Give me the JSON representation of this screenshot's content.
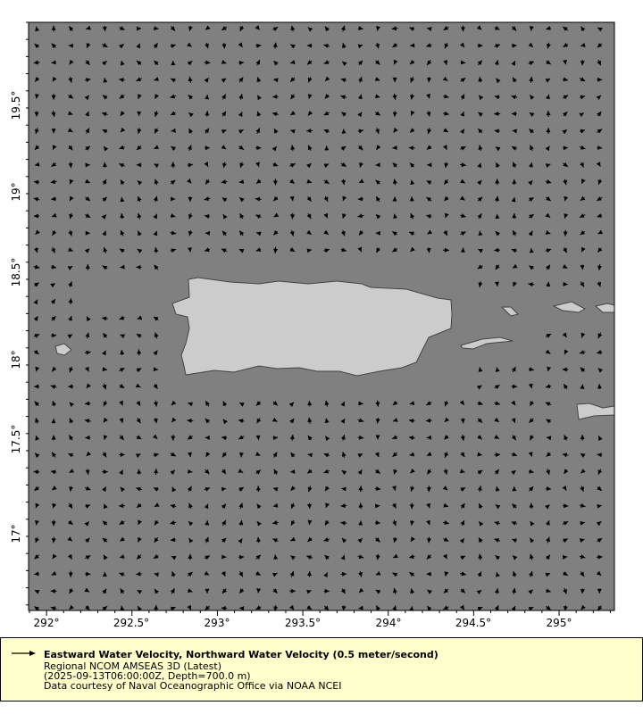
{
  "map": {
    "ocean_color": "#808080",
    "land_color": "#cccccc",
    "coast_color": "#444444",
    "vector_color": "#000000",
    "lon_ticks": [
      "292°",
      "292.5°",
      "293°",
      "293.5°",
      "294°",
      "294.5°",
      "295°"
    ],
    "lat_ticks": [
      "19.5°",
      "19°",
      "18.5°",
      "18°",
      "17.5°",
      "17°"
    ],
    "lon_range": [
      291.9,
      295.33
    ],
    "lat_range": [
      16.55,
      20.0
    ]
  },
  "legend": {
    "background": "#ffffcc",
    "icon": "arrow-icon",
    "title": "Eastward Water Velocity, Northward Water Velocity (0.5 meter/second)",
    "dataset": "Regional NCOM AMSEAS 3D (Latest)",
    "constraints": "(2025-09-13T06:00:00Z, Depth=700.0 m)",
    "credit": "Data courtesy of Naval Oceanographic Office via NOAA NCEI"
  }
}
